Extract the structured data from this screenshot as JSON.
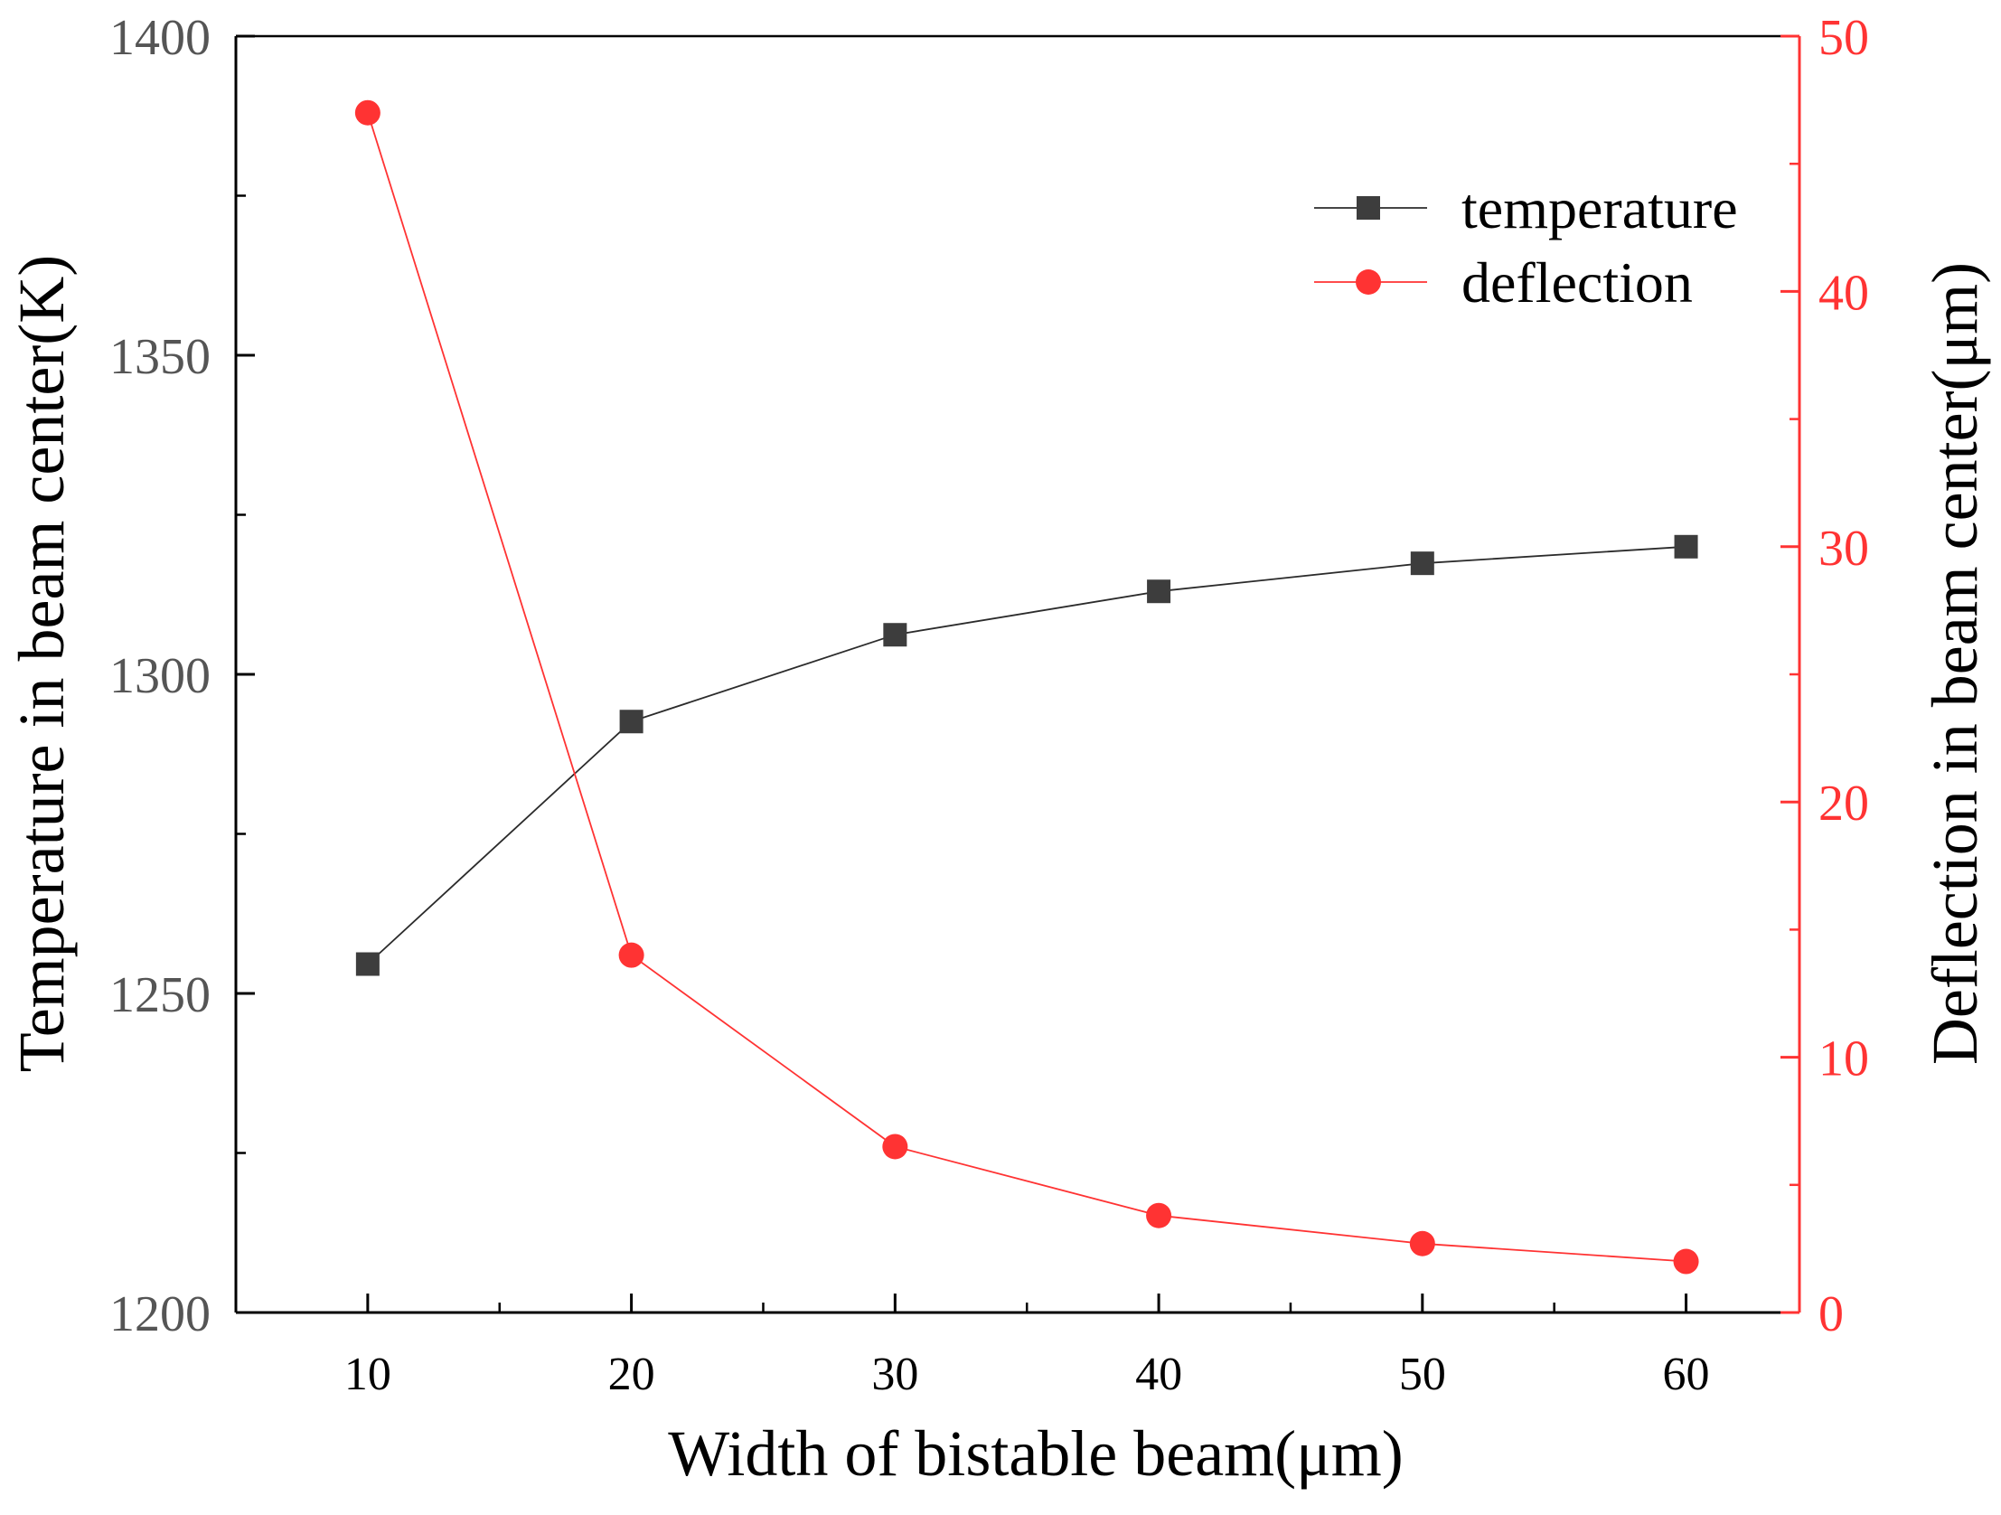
{
  "chart_data": {
    "type": "line",
    "title": "",
    "xlabel": "Width of bistable beam(μm)",
    "ylabel": "Temperature in beam center(K)",
    "y2label": "Deflection in beam center(μm)",
    "x": [
      10,
      20,
      30,
      40,
      50,
      60
    ],
    "xlim": [
      5,
      64.3
    ],
    "xticks": [
      10,
      20,
      30,
      40,
      50,
      60
    ],
    "ylim": [
      1200,
      1400
    ],
    "yticks": [
      1200,
      1250,
      1300,
      1350,
      1400
    ],
    "y2lim": [
      0,
      50
    ],
    "y2ticks": [
      0,
      10,
      20,
      30,
      40,
      50
    ],
    "grid": false,
    "legend": {
      "position": "top-right"
    },
    "series": [
      {
        "name": "temperature",
        "axis": "left",
        "marker": "square",
        "color": "#3d3d3d",
        "line_color": "#2b2b2b",
        "values": [
          1254.6,
          1292.6,
          1306.2,
          1313.0,
          1317.4,
          1320.0
        ]
      },
      {
        "name": "deflection",
        "axis": "right",
        "marker": "circle",
        "color": "#ff3333",
        "line_color": "#ff3333",
        "values": [
          47.0,
          14.0,
          6.5,
          3.8,
          2.7,
          2.0
        ]
      }
    ],
    "colors": {
      "left_axis": "#000000",
      "left_tick_labels": "#555555",
      "right_axis": "#ff3333",
      "x_tick_labels": "#000000"
    }
  }
}
